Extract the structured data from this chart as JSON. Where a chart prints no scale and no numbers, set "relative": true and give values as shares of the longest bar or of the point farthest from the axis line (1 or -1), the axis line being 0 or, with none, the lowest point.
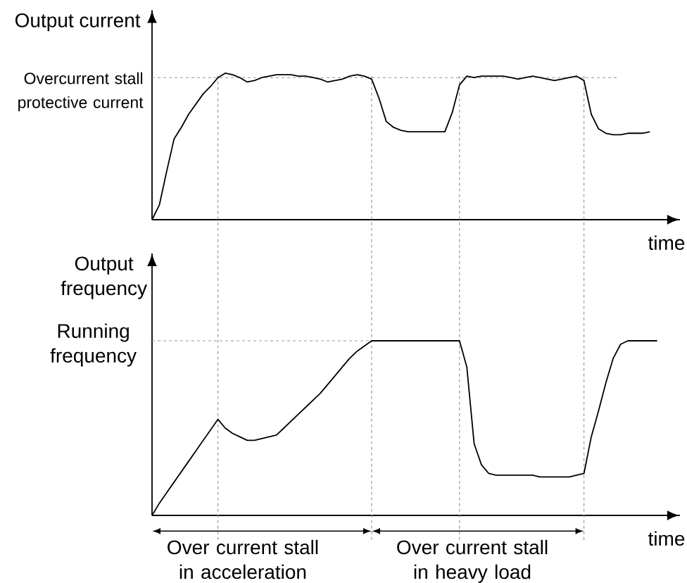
{
  "chart_data": [
    {
      "type": "line",
      "xlabel": "time",
      "ylabel": "Output current",
      "relative": true,
      "grid": "x",
      "categories": [
        null,
        null,
        null,
        null,
        null,
        null,
        null,
        null,
        null,
        null,
        null,
        null,
        null,
        null,
        null,
        null,
        null,
        null,
        null,
        null,
        null,
        null,
        null,
        null,
        null,
        null,
        null,
        null,
        null,
        null,
        null,
        null,
        null,
        null,
        null,
        null,
        null,
        null,
        null,
        null,
        null,
        null,
        null,
        null,
        null,
        null,
        null,
        null,
        null,
        null,
        null,
        null,
        null,
        null,
        null,
        null,
        null,
        null,
        null,
        null,
        null,
        null,
        null,
        null,
        null,
        null,
        null,
        null,
        null,
        null
      ],
      "series": [
        {
          "color": "#000000",
          "values": [
            0,
            0.1,
            0.33,
            0.55,
            0.63,
            0.72,
            0.79,
            0.86,
            0.91,
            0.97,
            1,
            0.99,
            0.97,
            0.94,
            0.95,
            0.97,
            0.98,
            0.99,
            0.99,
            0.99,
            0.98,
            0.98,
            0.97,
            0.96,
            0.94,
            0.95,
            0.96,
            0.98,
            0.99,
            0.98,
            0.96,
            0.83,
            0.67,
            0.63,
            0.61,
            0.6,
            0.6,
            0.6,
            0.6,
            0.6,
            0.6,
            0.73,
            0.92,
            0.98,
            0.97,
            0.98,
            0.98,
            0.98,
            0.98,
            0.97,
            0.96,
            0.97,
            0.98,
            0.97,
            0.96,
            0.95,
            0.96,
            0.97,
            0.98,
            0.95,
            0.72,
            0.62,
            0.59,
            0.58,
            0.58,
            0.59,
            0.59,
            0.59,
            0.6,
            null
          ]
        }
      ],
      "ref_lines": [
        {
          "axis": "y",
          "value": 0.97,
          "label": "Overcurrent stall protective current",
          "color": "#999999",
          "line_style": "dashed"
        }
      ]
    },
    {
      "type": "line",
      "xlabel": "time",
      "ylabel": "Output frequency",
      "relative": true,
      "grid": "x",
      "categories": [
        null,
        null,
        null,
        null,
        null,
        null,
        null,
        null,
        null,
        null,
        null,
        null,
        null,
        null,
        null,
        null,
        null,
        null,
        null,
        null,
        null,
        null,
        null,
        null,
        null,
        null,
        null,
        null,
        null,
        null,
        null,
        null,
        null,
        null,
        null,
        null,
        null,
        null,
        null,
        null,
        null,
        null,
        null,
        null,
        null,
        null,
        null,
        null,
        null,
        null,
        null,
        null,
        null,
        null,
        null,
        null,
        null,
        null,
        null,
        null,
        null,
        null,
        null,
        null,
        null,
        null,
        null,
        null,
        null,
        null
      ],
      "series": [
        {
          "color": "#000000",
          "values": [
            0,
            0.07,
            0.13,
            0.19,
            0.25,
            0.31,
            0.37,
            0.43,
            0.49,
            0.55,
            0.5,
            0.47,
            0.45,
            0.43,
            0.43,
            0.44,
            0.45,
            0.46,
            0.5,
            0.54,
            0.58,
            0.62,
            0.66,
            0.7,
            0.75,
            0.8,
            0.85,
            0.9,
            0.94,
            0.97,
            1,
            1,
            1,
            1,
            1,
            1,
            1,
            1,
            1,
            1,
            1,
            1,
            1,
            0.85,
            0.41,
            0.29,
            0.24,
            0.23,
            0.23,
            0.23,
            0.23,
            0.23,
            0.23,
            0.22,
            0.22,
            0.22,
            0.22,
            0.22,
            0.23,
            0.24,
            0.45,
            0.6,
            0.76,
            0.9,
            0.98,
            1,
            1,
            1,
            1,
            1
          ]
        }
      ],
      "ref_lines": [
        {
          "axis": "y",
          "value": 1,
          "label": "Running frequency",
          "color": "#999999",
          "line_style": "dashed"
        }
      ],
      "annotations": [
        "Over current stall in acceleration",
        "Over current stall in heavy load"
      ]
    }
  ]
}
